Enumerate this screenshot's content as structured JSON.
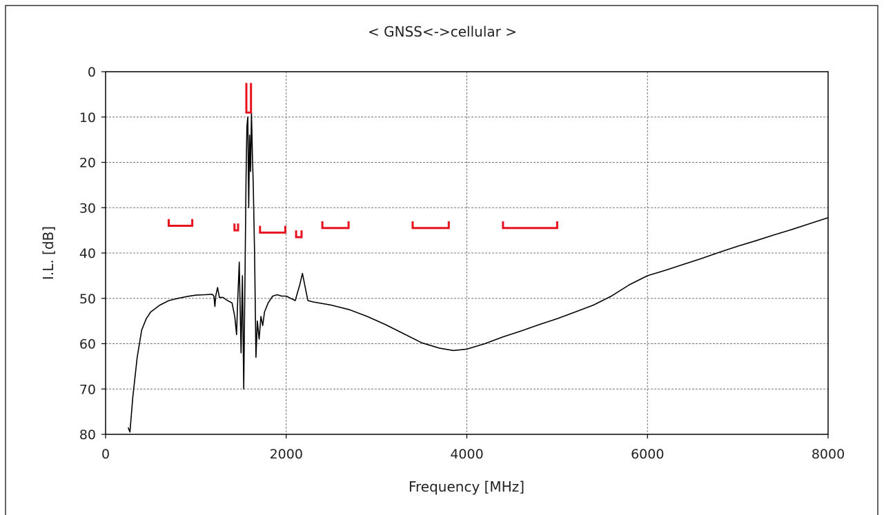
{
  "chart_data": {
    "type": "line",
    "title": "< GNSS<->cellular >",
    "xlabel": "Frequency [MHz]",
    "ylabel": "I.L. [dB]",
    "xlim": [
      0,
      8000
    ],
    "ylim": [
      0,
      80
    ],
    "y_inverted": true,
    "x_ticks": [
      "0",
      "2000",
      "4000",
      "6000",
      "8000"
    ],
    "y_ticks": [
      "0",
      "10",
      "20",
      "30",
      "40",
      "50",
      "60",
      "70",
      "80"
    ],
    "grid": true,
    "series_color": "#000000",
    "marker_color": "#e8121e",
    "series": [
      {
        "values": [
          [
            250,
            78.5
          ],
          [
            270,
            79.5
          ],
          [
            300,
            72
          ],
          [
            350,
            63
          ],
          [
            400,
            57
          ],
          [
            450,
            54.5
          ],
          [
            500,
            53
          ],
          [
            600,
            51.5
          ],
          [
            700,
            50.5
          ],
          [
            800,
            50
          ],
          [
            900,
            49.6
          ],
          [
            1000,
            49.3
          ],
          [
            1100,
            49.2
          ],
          [
            1180,
            49.1
          ],
          [
            1200,
            49.5
          ],
          [
            1210,
            51.8
          ],
          [
            1220,
            49.4
          ],
          [
            1240,
            47.6
          ],
          [
            1260,
            49.8
          ],
          [
            1300,
            49.8
          ],
          [
            1350,
            50.5
          ],
          [
            1400,
            51
          ],
          [
            1430,
            54
          ],
          [
            1450,
            58
          ],
          [
            1460,
            52
          ],
          [
            1480,
            42
          ],
          [
            1500,
            62
          ],
          [
            1515,
            45
          ],
          [
            1530,
            70
          ],
          [
            1545,
            43
          ],
          [
            1555,
            24
          ],
          [
            1565,
            12
          ],
          [
            1575,
            10
          ],
          [
            1585,
            30
          ],
          [
            1595,
            14
          ],
          [
            1605,
            22
          ],
          [
            1615,
            9
          ],
          [
            1625,
            18
          ],
          [
            1635,
            25
          ],
          [
            1650,
            40
          ],
          [
            1665,
            63
          ],
          [
            1680,
            55
          ],
          [
            1700,
            59
          ],
          [
            1720,
            54
          ],
          [
            1740,
            56
          ],
          [
            1760,
            53
          ],
          [
            1800,
            51
          ],
          [
            1850,
            49.5
          ],
          [
            1900,
            49.2
          ],
          [
            1950,
            49.5
          ],
          [
            2000,
            49.5
          ],
          [
            2050,
            50
          ],
          [
            2100,
            50.5
          ],
          [
            2150,
            47
          ],
          [
            2180,
            44.5
          ],
          [
            2210,
            47.5
          ],
          [
            2240,
            50.5
          ],
          [
            2300,
            50.8
          ],
          [
            2500,
            51.5
          ],
          [
            2700,
            52.5
          ],
          [
            2900,
            54
          ],
          [
            3100,
            55.8
          ],
          [
            3300,
            57.8
          ],
          [
            3500,
            59.8
          ],
          [
            3700,
            61
          ],
          [
            3850,
            61.5
          ],
          [
            4000,
            61.2
          ],
          [
            4200,
            60
          ],
          [
            4400,
            58.5
          ],
          [
            4600,
            57.2
          ],
          [
            4800,
            55.8
          ],
          [
            5000,
            54.5
          ],
          [
            5200,
            53
          ],
          [
            5400,
            51.5
          ],
          [
            5600,
            49.5
          ],
          [
            5800,
            47
          ],
          [
            6000,
            45
          ],
          [
            6200,
            43.8
          ],
          [
            6400,
            42.5
          ],
          [
            6600,
            41.2
          ],
          [
            6800,
            39.8
          ],
          [
            7000,
            38.5
          ],
          [
            7200,
            37.3
          ],
          [
            7400,
            36
          ],
          [
            7600,
            34.8
          ],
          [
            7800,
            33.5
          ],
          [
            8000,
            32.2
          ]
        ]
      }
    ],
    "spec_markers": [
      {
        "x_start": 699,
        "x_end": 960,
        "y_limit": 34,
        "y_top": 32.5
      },
      {
        "x_start": 1427,
        "x_end": 1467,
        "y_limit": 35,
        "y_top": 33.5
      },
      {
        "x_start": 1559,
        "x_end": 1610,
        "y_limit": 9,
        "y_top": 2.5
      },
      {
        "x_start": 1710,
        "x_end": 1990,
        "y_limit": 35.5,
        "y_top": 34
      },
      {
        "x_start": 2110,
        "x_end": 2170,
        "y_limit": 36.5,
        "y_top": 35
      },
      {
        "x_start": 2400,
        "x_end": 2690,
        "y_limit": 34.5,
        "y_top": 33
      },
      {
        "x_start": 3400,
        "x_end": 3800,
        "y_limit": 34.5,
        "y_top": 33
      },
      {
        "x_start": 4400,
        "x_end": 5000,
        "y_limit": 34.5,
        "y_top": 33
      }
    ]
  }
}
